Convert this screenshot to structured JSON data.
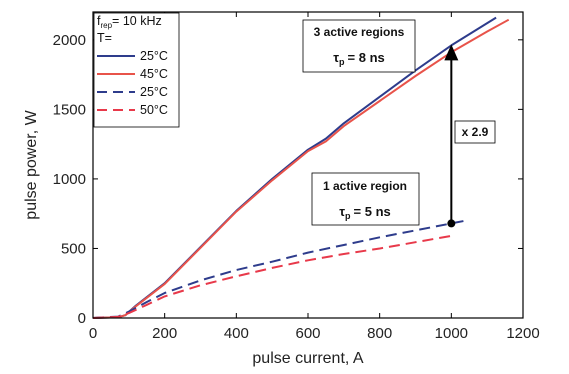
{
  "chart_data": {
    "type": "line",
    "xlabel": "pulse current, A",
    "ylabel": "pulse power, W",
    "xlim": [
      0,
      1200
    ],
    "ylim": [
      0,
      2200
    ],
    "xticks": [
      0,
      200,
      400,
      600,
      800,
      1000,
      1200
    ],
    "yticks": [
      0,
      500,
      1000,
      1500,
      2000
    ],
    "grid": false,
    "legend_position": "top-left",
    "legend_header": {
      "line1_prefix": "f",
      "line1_sub": "rep",
      "line1_suffix": "= 10 kHz",
      "line2": "T="
    },
    "series": [
      {
        "name": "25°C",
        "color": "#2e3c8c",
        "dash": false,
        "x": [
          0,
          70,
          90,
          120,
          200,
          300,
          400,
          500,
          600,
          650,
          700,
          800,
          900,
          1000,
          1100,
          1125
        ],
        "y": [
          0,
          5,
          20,
          90,
          250,
          510,
          770,
          1000,
          1210,
          1290,
          1400,
          1590,
          1780,
          1960,
          2120,
          2160
        ]
      },
      {
        "name": "45°C",
        "color": "#e8534a",
        "dash": false,
        "x": [
          0,
          70,
          90,
          120,
          200,
          300,
          400,
          500,
          600,
          650,
          700,
          800,
          900,
          1000,
          1100,
          1160
        ],
        "y": [
          0,
          5,
          20,
          85,
          245,
          505,
          765,
          990,
          1200,
          1270,
          1380,
          1560,
          1740,
          1910,
          2060,
          2145
        ]
      },
      {
        "name": "25°C",
        "color": "#2e3c8c",
        "dash": true,
        "x": [
          0,
          70,
          100,
          150,
          200,
          300,
          400,
          500,
          600,
          700,
          800,
          900,
          1000,
          1040
        ],
        "y": [
          0,
          10,
          45,
          115,
          180,
          270,
          345,
          405,
          470,
          525,
          580,
          630,
          680,
          700
        ]
      },
      {
        "name": "50°C",
        "color": "#e8394a",
        "dash": true,
        "x": [
          0,
          70,
          100,
          150,
          200,
          300,
          400,
          500,
          600,
          700,
          800,
          900,
          1000
        ],
        "y": [
          0,
          8,
          35,
          95,
          155,
          235,
          300,
          360,
          415,
          460,
          500,
          545,
          590
        ]
      }
    ],
    "annotations": {
      "top": {
        "line1": "3 active regions",
        "tau_sub": "p",
        "tau_value": "= 8 ns"
      },
      "bottom": {
        "line1": "1 active region",
        "tau_sub": "p",
        "tau_value": "= 5 ns"
      },
      "ratio": "x 2.9",
      "arrow": {
        "x": 1000,
        "y_from": 680,
        "y_to": 1960
      }
    }
  }
}
